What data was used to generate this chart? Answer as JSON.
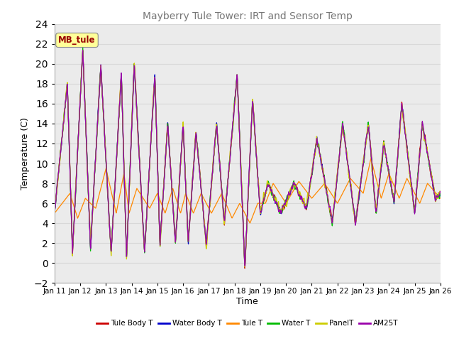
{
  "title": "Mayberry Tule Tower: IRT and Sensor Temp",
  "xlabel": "Time",
  "ylabel": "Temperature (C)",
  "ylim": [
    -2,
    24
  ],
  "yticks": [
    -2,
    0,
    2,
    4,
    6,
    8,
    10,
    12,
    14,
    16,
    18,
    20,
    22,
    24
  ],
  "x_start": 0,
  "x_end": 15,
  "n_points": 1500,
  "annotation_text": "MB_tule",
  "series": [
    {
      "label": "Tule Body T",
      "color": "#cc0000",
      "lw": 0.9
    },
    {
      "label": "Water Body T",
      "color": "#0000cc",
      "lw": 0.9
    },
    {
      "label": "Tule T",
      "color": "#ff8800",
      "lw": 0.9
    },
    {
      "label": "Water T",
      "color": "#00bb00",
      "lw": 0.9
    },
    {
      "label": "PanelT",
      "color": "#cccc00",
      "lw": 0.9
    },
    {
      "label": "AM25T",
      "color": "#9900aa",
      "lw": 0.9
    }
  ],
  "xtick_labels": [
    "Jan 11",
    "Jan 12",
    "Jan 13",
    "Jan 14",
    "Jan 15",
    "Jan 16",
    "Jan 17",
    "Jan 18",
    "Jan 19",
    "Jan 20",
    "Jan 21",
    "Jan 22",
    "Jan 23",
    "Jan 24",
    "Jan 25",
    "Jan 26"
  ],
  "xtick_positions": [
    0,
    1,
    2,
    3,
    4,
    5,
    6,
    7,
    8,
    9,
    10,
    11,
    12,
    13,
    14,
    15
  ],
  "grid_color": "#d8d8d8",
  "bg_color": "#ebebeb"
}
